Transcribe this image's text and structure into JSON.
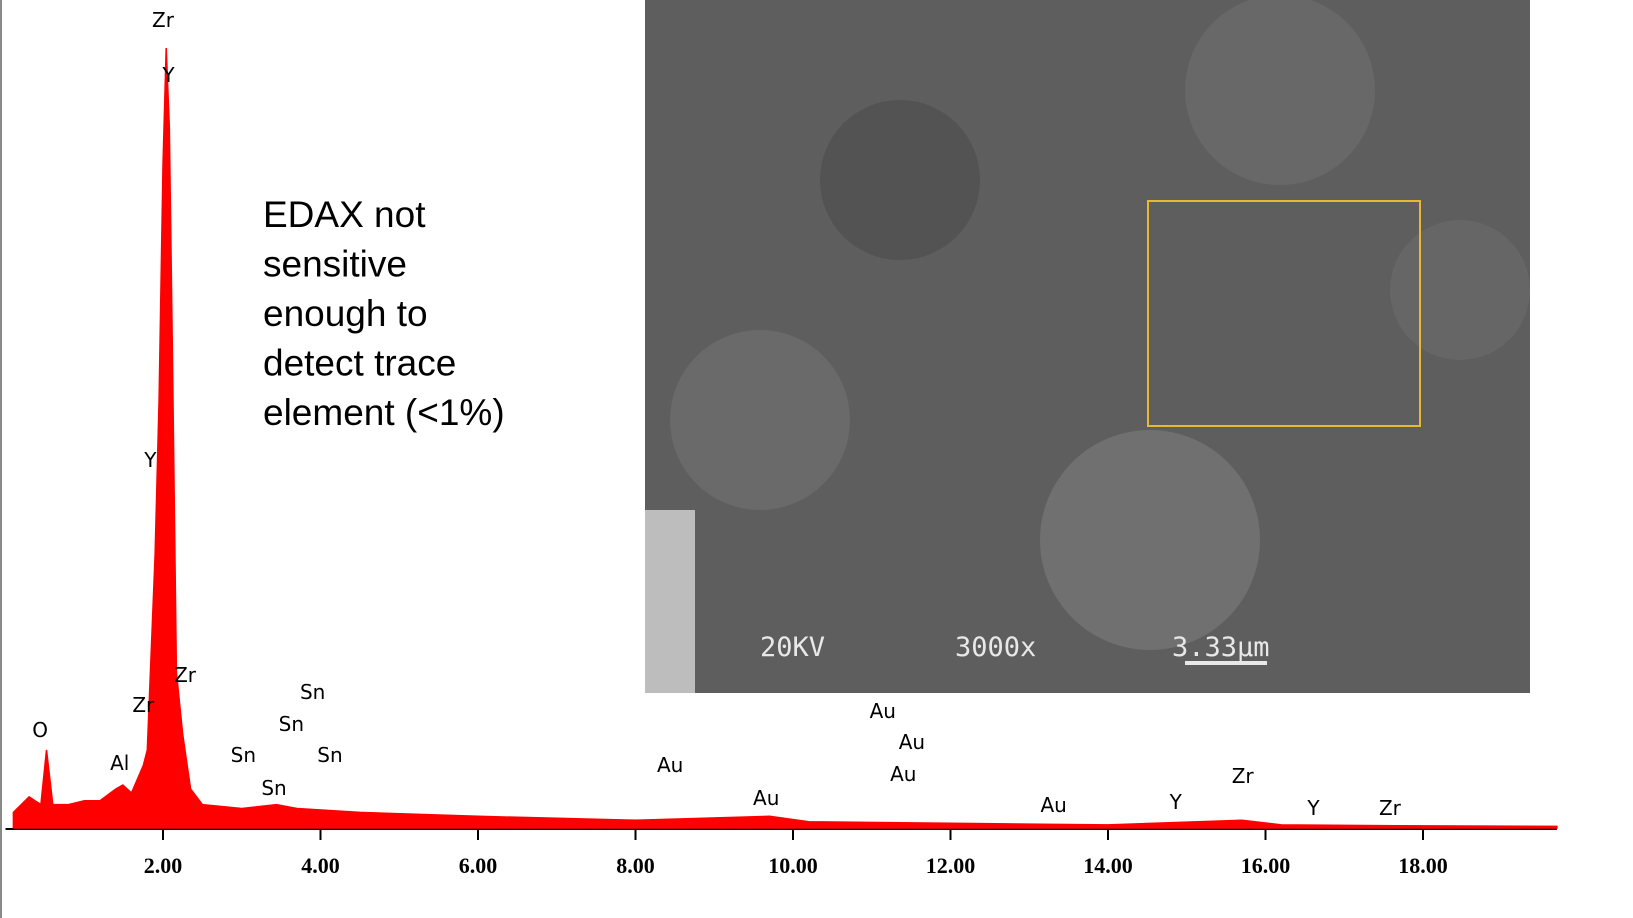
{
  "chart_data": {
    "type": "area",
    "color": "#ff0000",
    "x": [
      0.1,
      0.3,
      0.45,
      0.52,
      0.6,
      0.8,
      1.0,
      1.2,
      1.4,
      1.49,
      1.6,
      1.75,
      1.8,
      1.9,
      1.95,
      2.0,
      2.04,
      2.08,
      2.12,
      2.17,
      2.25,
      2.35,
      2.5,
      3.0,
      3.44,
      3.7,
      4.5,
      6.0,
      8.0,
      9.7,
      10.2,
      12.0,
      14.0,
      15.7,
      16.2,
      17.7,
      19.7
    ],
    "values": [
      2,
      4,
      3,
      10,
      3,
      3,
      3.5,
      3.5,
      5,
      5.5,
      4.5,
      8,
      10,
      35,
      55,
      85,
      100,
      90,
      60,
      20,
      12,
      5,
      3,
      2.5,
      3,
      2.5,
      2,
      1.5,
      1,
      1.5,
      0.8,
      0.6,
      0.4,
      1,
      0.4,
      0.3,
      0.2
    ],
    "xlim": [
      0,
      19.7
    ],
    "ylim": [
      0,
      100
    ],
    "xticks": [
      {
        "value": 2,
        "label": "2.00"
      },
      {
        "value": 4,
        "label": "4.00"
      },
      {
        "value": 6,
        "label": "6.00"
      },
      {
        "value": 8,
        "label": "8.00"
      },
      {
        "value": 10,
        "label": "10.00"
      },
      {
        "value": 12,
        "label": "12.00"
      },
      {
        "value": 14,
        "label": "14.00"
      },
      {
        "value": 16,
        "label": "16.00"
      },
      {
        "value": 18,
        "label": "18.00"
      }
    ],
    "peak_labels": [
      {
        "text": "Zr",
        "x": 2.0
      },
      {
        "text": "Y",
        "x": 2.07
      },
      {
        "text": "Y",
        "x": 1.84
      },
      {
        "text": "Zr",
        "x": 2.28
      },
      {
        "text": "Zr",
        "x": 1.75
      },
      {
        "text": "O",
        "x": 0.44
      },
      {
        "text": "Al",
        "x": 1.45
      },
      {
        "text": "Sn",
        "x": 3.9
      },
      {
        "text": "Sn",
        "x": 3.63
      },
      {
        "text": "Sn",
        "x": 3.02
      },
      {
        "text": "Sn",
        "x": 4.12
      },
      {
        "text": "Sn",
        "x": 3.41
      },
      {
        "text": "Au",
        "x": 8.44
      },
      {
        "text": "Au",
        "x": 9.66
      },
      {
        "text": "Au",
        "x": 11.14
      },
      {
        "text": "Au",
        "x": 11.51
      },
      {
        "text": "Au",
        "x": 11.4
      },
      {
        "text": "Au",
        "x": 13.31
      },
      {
        "text": "Y",
        "x": 14.86
      },
      {
        "text": "Zr",
        "x": 15.71
      },
      {
        "text": "Y",
        "x": 16.61
      },
      {
        "text": "Zr",
        "x": 17.58
      }
    ],
    "annotation": [
      "EDAX not",
      "sensitive",
      "enough to",
      "detect trace",
      "element (<1%)"
    ]
  },
  "sem_image": {
    "voltage": "20KV",
    "magnification": "3000x",
    "scale_bar": "3.33µm"
  }
}
